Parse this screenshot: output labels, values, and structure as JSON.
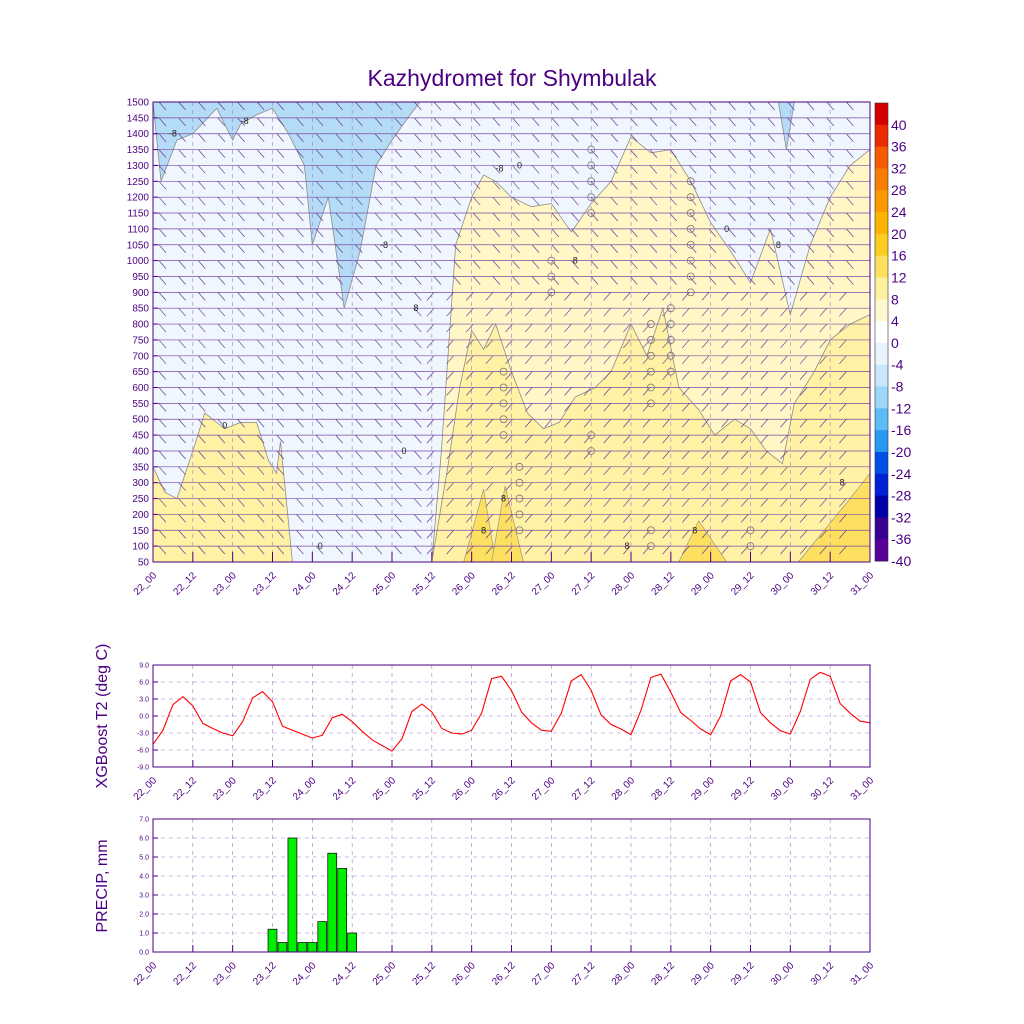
{
  "title": "Kazhydromet for Shymbulak",
  "time_labels": [
    "22_00",
    "22_12",
    "23_00",
    "23_12",
    "24_00",
    "24_12",
    "25_00",
    "25_12",
    "26_00",
    "26_12",
    "27_00",
    "27_12",
    "28_00",
    "28_12",
    "29_00",
    "29_12",
    "30_00",
    "30_12",
    "31_00"
  ],
  "colors": {
    "text": "#4B0082",
    "frame": "#4B0082",
    "t2_line": "#ff0000",
    "precip_bar": "#00ee00"
  },
  "chart_data": [
    {
      "type": "heatmap",
      "title": "Kazhydromet for Shymbulak",
      "xlabel": "",
      "ylabel": "",
      "y_ticks": [
        1500,
        1450,
        1400,
        1350,
        1300,
        1250,
        1200,
        1150,
        1100,
        1050,
        1000,
        950,
        900,
        850,
        800,
        750,
        700,
        650,
        600,
        550,
        500,
        450,
        400,
        350,
        300,
        250,
        200,
        150,
        100,
        50
      ],
      "ylim": [
        50,
        1500
      ],
      "colorbar_labels": [
        "40",
        "36",
        "32",
        "28",
        "24",
        "20",
        "16",
        "12",
        "8",
        "4",
        "0",
        "-4",
        "-8",
        "-12",
        "-16",
        "-20",
        "-24",
        "-28",
        "-32",
        "-36",
        "-40"
      ],
      "colorbar_colors": [
        "#d40000",
        "#ec2a00",
        "#f55a00",
        "#f87c00",
        "#fa9a00",
        "#fcb400",
        "#fdcc20",
        "#fde060",
        "#fff0a0",
        "#fff8d0",
        "#ffffff",
        "#eaf4ff",
        "#c8e6fc",
        "#9cd6f8",
        "#5cbcf6",
        "#2898f0",
        "#0050e8",
        "#0020d8",
        "#0000a8",
        "#380090",
        "#580098"
      ],
      "colorbar_range": [
        -40,
        44
      ],
      "contour_labels": [
        "-8",
        "-8",
        "-8",
        "0",
        "-8",
        "8",
        "0",
        "0",
        "8",
        "8",
        "8",
        "8",
        "8",
        "8",
        "8",
        "0",
        "0"
      ],
      "fields": [
        {
          "name": "warm",
          "x": [
            22.0,
            22.5,
            23.0,
            23.4,
            23.8,
            24.5,
            25.0,
            25.3,
            25.5,
            25.62,
            25.8,
            26.0,
            26.15,
            26.3,
            26.5,
            26.75,
            27.0,
            27.25,
            27.5,
            27.75,
            28.0,
            28.25,
            28.5,
            28.75,
            29.0,
            29.25,
            29.5,
            29.75,
            30.0,
            30.25,
            30.5,
            30.75,
            31.0
          ],
          "y": [
            50,
            50,
            50,
            50,
            50,
            50,
            50,
            50,
            50,
            400,
            1050,
            1200,
            1270,
            1250,
            1200,
            1170,
            1180,
            1090,
            1180,
            1250,
            1390,
            1340,
            1350,
            1250,
            1120,
            1030,
            930,
            1100,
            830,
            1050,
            1200,
            1300,
            1350
          ]
        },
        {
          "name": "warm_low",
          "x": [
            22.0,
            22.15,
            22.3,
            22.5,
            22.65,
            22.9,
            23.1,
            23.3,
            23.45,
            23.55,
            23.6,
            23.75,
            23.85,
            25.5,
            25.7,
            25.85,
            26.0,
            26.15,
            26.3,
            26.5,
            26.7,
            26.9,
            27.1,
            27.3,
            27.55,
            27.75,
            28.0,
            28.2,
            28.4,
            28.6,
            28.85,
            29.05,
            29.3,
            29.5,
            29.7,
            29.9,
            30.05,
            30.3,
            30.5,
            30.75,
            31.0
          ],
          "y": [
            350,
            270,
            250,
            400,
            520,
            470,
            490,
            490,
            370,
            330,
            430,
            50,
            50,
            50,
            350,
            600,
            780,
            720,
            800,
            650,
            520,
            470,
            490,
            570,
            600,
            650,
            800,
            700,
            850,
            600,
            530,
            450,
            500,
            470,
            400,
            360,
            550,
            650,
            750,
            800,
            830
          ]
        },
        {
          "name": "cold",
          "x": [
            22.0,
            22.1,
            22.3,
            22.5,
            22.8,
            23.0,
            23.1,
            23.3,
            23.5,
            23.7,
            23.9,
            24.0,
            24.2,
            24.4,
            24.6,
            24.8,
            25.0,
            25.2,
            25.35,
            29.85,
            29.95,
            30.05
          ],
          "y": [
            1500,
            1250,
            1380,
            1400,
            1480,
            1380,
            1430,
            1460,
            1480,
            1400,
            1300,
            1050,
            1200,
            850,
            1030,
            1300,
            1380,
            1450,
            1500,
            1500,
            1350,
            1500
          ]
        }
      ],
      "barb_levels": [
        1500,
        1450,
        1400,
        1350,
        1300,
        1250,
        1200,
        1150,
        1100,
        1050,
        1000,
        950,
        900,
        850,
        800,
        750,
        700,
        650,
        600,
        550,
        500,
        450,
        400,
        350,
        300,
        250,
        200,
        150,
        100,
        50
      ],
      "barb_times": 36
    },
    {
      "type": "line",
      "title": "",
      "xlabel": "",
      "ylabel": "XGBoost T2 (deg C)",
      "ylim": [
        -9.0,
        9.0
      ],
      "y_ticks": [
        "9.0",
        "6.0",
        "3.0",
        "0.0",
        "-3.0",
        "-6.0",
        "-9.0"
      ],
      "x": [
        22.0,
        22.125,
        22.25,
        22.375,
        22.5,
        22.625,
        22.75,
        22.875,
        23.0,
        23.125,
        23.25,
        23.375,
        23.5,
        23.625,
        23.75,
        23.875,
        24.0,
        24.125,
        24.25,
        24.375,
        24.5,
        24.625,
        24.75,
        24.875,
        25.0,
        25.125,
        25.25,
        25.375,
        25.5,
        25.625,
        25.75,
        25.875,
        26.0,
        26.125,
        26.25,
        26.375,
        26.5,
        26.625,
        26.75,
        26.875,
        27.0,
        27.125,
        27.25,
        27.375,
        27.5,
        27.625,
        27.75,
        27.875,
        28.0,
        28.125,
        28.25,
        28.375,
        28.5,
        28.625,
        28.75,
        28.875,
        29.0,
        29.125,
        29.25,
        29.375,
        29.5,
        29.625,
        29.75,
        29.875,
        30.0,
        30.125,
        30.25,
        30.375,
        30.5,
        30.625,
        30.75,
        30.875,
        31.0
      ],
      "series": [
        {
          "y": [
            -5.0,
            -2.5,
            2.0,
            3.4,
            1.8,
            -1.3,
            -2.2,
            -3.0,
            -3.5,
            -1.0,
            3.2,
            4.3,
            2.5,
            -1.8,
            -2.5,
            -3.2,
            -3.9,
            -3.4,
            -0.3,
            0.3,
            -1.0,
            -2.7,
            -4.2,
            -5.2,
            -6.2,
            -4.0,
            0.8,
            2.1,
            0.7,
            -2.2,
            -3.0,
            -3.2,
            -2.5,
            0.5,
            6.6,
            7.0,
            4.5,
            0.7,
            -1.2,
            -2.5,
            -2.7,
            0.5,
            6.2,
            7.3,
            4.5,
            0.2,
            -1.5,
            -2.3,
            -3.3,
            1.0,
            6.8,
            7.4,
            4.2,
            0.6,
            -0.8,
            -2.3,
            -3.3,
            0.0,
            6.2,
            7.3,
            6.0,
            0.6,
            -1.2,
            -2.6,
            -3.2,
            0.8,
            6.5,
            7.7,
            7.0,
            2.2,
            0.5,
            -0.9,
            -1.2
          ]
        }
      ]
    },
    {
      "type": "bar",
      "title": "",
      "xlabel": "",
      "ylabel": "PRECIP, mm",
      "ylim": [
        0.0,
        7.0
      ],
      "y_ticks": [
        "7.0",
        "6.0",
        "5.0",
        "4.0",
        "3.0",
        "2.0",
        "1.0",
        "0.0"
      ],
      "x": [
        23.5,
        23.625,
        23.75,
        23.875,
        24.0,
        24.125,
        24.25,
        24.375,
        24.5
      ],
      "values": [
        1.2,
        0.5,
        6.0,
        0.5,
        0.5,
        1.6,
        5.2,
        4.4,
        1.0
      ]
    }
  ]
}
